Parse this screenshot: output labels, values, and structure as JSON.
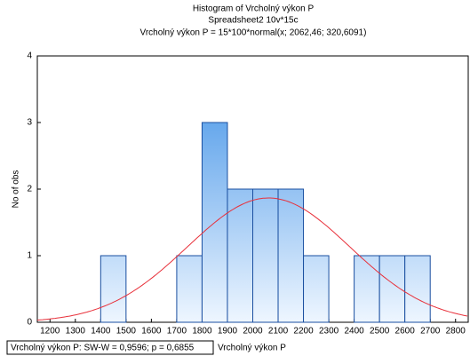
{
  "chart_data": {
    "type": "histogram",
    "title": "Histogram of Vrcholný výkon P",
    "subtitle": "Spreadsheet2 10v*15c",
    "fit_label": "Vrcholný výkon P = 15*100*normal(x; 2062,46; 320,6091)",
    "x_label": "Vrcholný výkon P",
    "y_label": "No of obs",
    "test_label": "Vrcholný výkon P:  SW-W = 0,9596; p = 0,6855",
    "bins": [
      1400,
      1500,
      1600,
      1700,
      1800,
      1900,
      2000,
      2100,
      2200,
      2300,
      2400,
      2500,
      2600,
      2700
    ],
    "values": [
      1,
      0,
      0,
      1,
      3,
      2,
      2,
      2,
      1,
      0,
      1,
      1,
      1
    ],
    "color": "#3a8ee6",
    "normal_fit": {
      "n": 15,
      "bin_width": 100,
      "mean": 2062.46,
      "sd": 320.6091,
      "color": "#e8303a"
    },
    "xlim": [
      1150,
      2850
    ],
    "xticks": [
      1200,
      1300,
      1400,
      1500,
      1600,
      1700,
      1800,
      1900,
      2000,
      2100,
      2200,
      2300,
      2400,
      2500,
      2600,
      2700,
      2800
    ],
    "ylim": [
      0,
      4
    ],
    "yticks": [
      0,
      1,
      2,
      3,
      4
    ],
    "grid": false
  }
}
